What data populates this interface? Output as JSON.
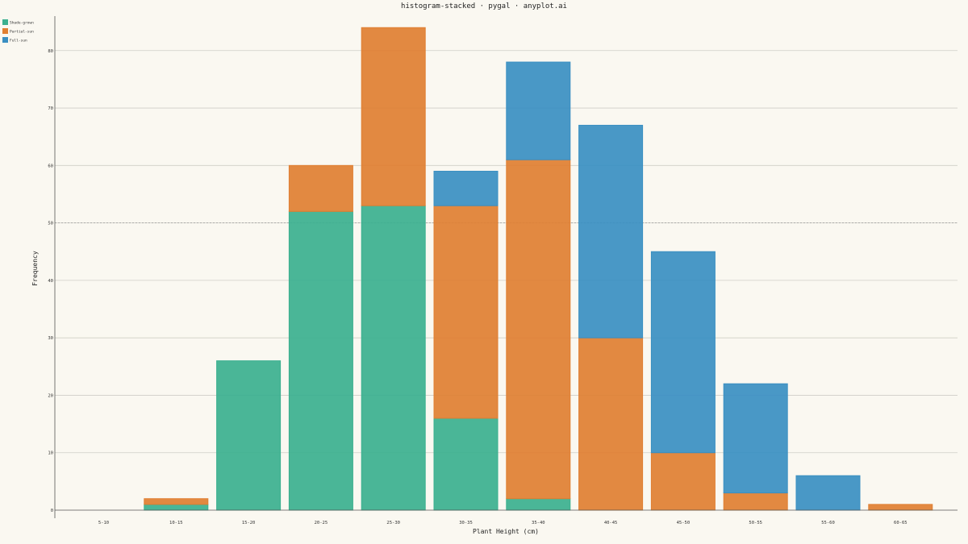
{
  "chart_data": {
    "type": "bar",
    "stacked": true,
    "title": "histogram-stacked · pygal · anyplot.ai",
    "xlabel": "Plant Height (cm)",
    "ylabel": "Frequency",
    "categories": [
      "5-10",
      "10-15",
      "15-20",
      "20-25",
      "25-30",
      "30-35",
      "35-40",
      "40-45",
      "45-50",
      "50-55",
      "55-60",
      "60-65"
    ],
    "series": [
      {
        "name": "Shade-grown",
        "color": "#3BB08F",
        "values": [
          0,
          1,
          26,
          52,
          53,
          16,
          2,
          0,
          0,
          0,
          0,
          0
        ]
      },
      {
        "name": "Partial-sun",
        "color": "#E07F32",
        "values": [
          0,
          1,
          0,
          8,
          31,
          37,
          59,
          30,
          10,
          3,
          0,
          1
        ]
      },
      {
        "name": "Full-sun",
        "color": "#3A8FC2",
        "values": [
          0,
          0,
          0,
          0,
          0,
          6,
          17,
          37,
          35,
          19,
          6,
          0
        ]
      }
    ],
    "ylim": [
      0,
      86
    ],
    "yticks": [
      0,
      10,
      20,
      30,
      40,
      50,
      60,
      70,
      80
    ],
    "reference_line": 50,
    "grid": true,
    "legend_position": "top-left"
  }
}
